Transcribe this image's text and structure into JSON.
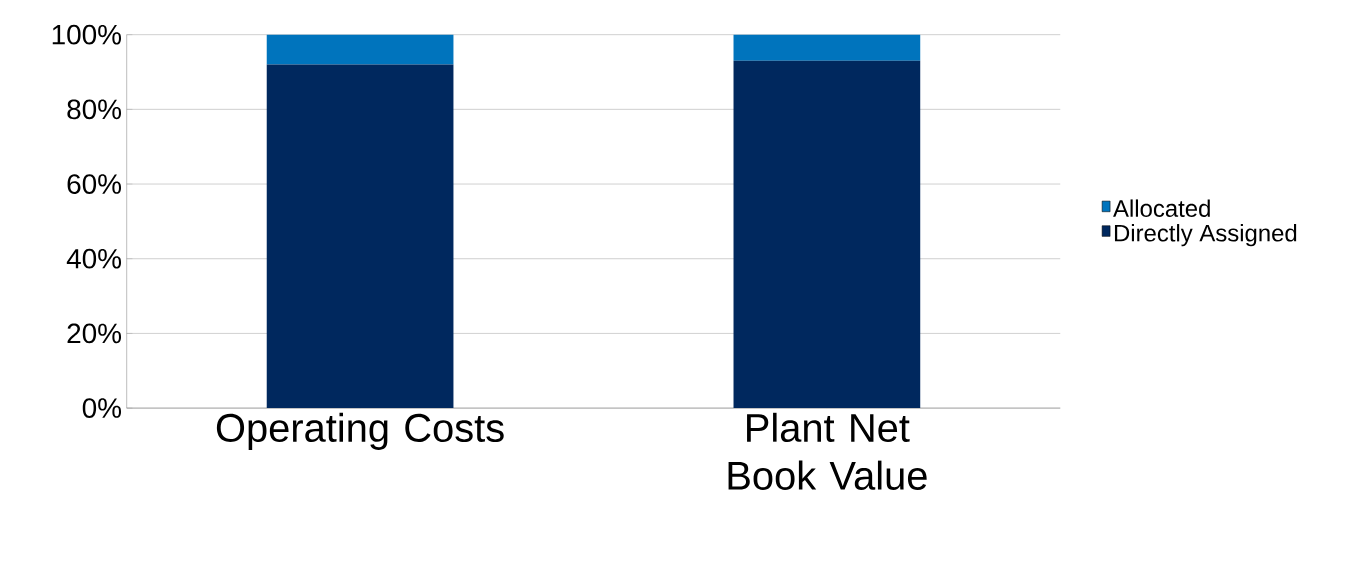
{
  "chart_data": {
    "type": "bar",
    "stacked": true,
    "categories": [
      "Operating Costs",
      "Plant Net Book Value"
    ],
    "series": [
      {
        "name": "Directly Assigned",
        "color": "#00285e",
        "values": [
          92,
          93
        ]
      },
      {
        "name": "Allocated",
        "color": "#0074bd",
        "values": [
          8,
          7
        ]
      }
    ],
    "ylim": [
      0,
      100
    ],
    "yticks": [
      {
        "value": 0,
        "label": "0%"
      },
      {
        "value": 20,
        "label": "20%"
      },
      {
        "value": 40,
        "label": "40%"
      },
      {
        "value": 60,
        "label": "60%"
      },
      {
        "value": 80,
        "label": "80%"
      },
      {
        "value": 100,
        "label": "100%"
      }
    ],
    "grid": "y",
    "legend": "right"
  }
}
